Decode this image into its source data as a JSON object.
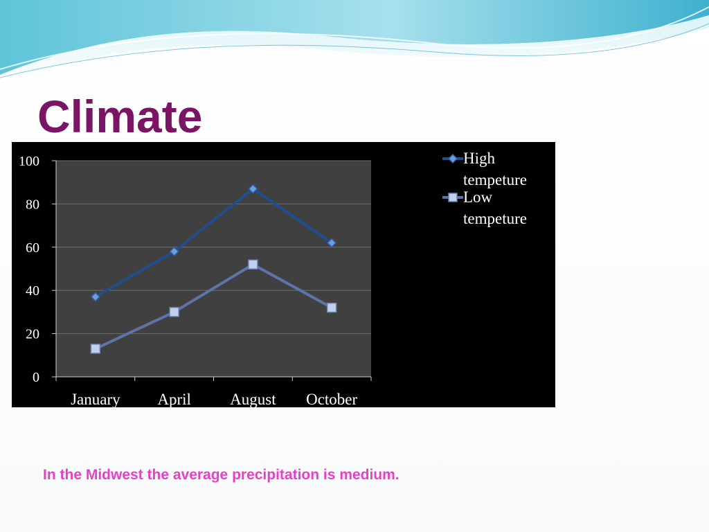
{
  "slide": {
    "title": "Climate",
    "caption": "In the Midwest the average precipitation is medium."
  },
  "colors": {
    "title": "#7a1464",
    "caption": "#e83fc9",
    "chart_background": "#000000",
    "plot_background": "#404040",
    "gridline": "#6e6e6e",
    "high_series": "#1f4e8c",
    "low_series": "#5e74a8"
  },
  "chart_data": {
    "type": "line",
    "categories": [
      "January",
      "April",
      "August",
      "October"
    ],
    "series": [
      {
        "name": "High tempeture",
        "legend_lines": [
          "High",
          "tempeture"
        ],
        "values": [
          37,
          58,
          87,
          62
        ],
        "marker": "diamond"
      },
      {
        "name": "Low tempeture",
        "legend_lines": [
          "Low",
          "tempeture"
        ],
        "values": [
          13,
          30,
          52,
          32
        ],
        "marker": "square"
      }
    ],
    "ylim": [
      0,
      100
    ],
    "yticks": [
      0,
      20,
      40,
      60,
      80,
      100
    ],
    "grid": true,
    "legend_position": "right",
    "title": "",
    "xlabel": "",
    "ylabel": ""
  }
}
